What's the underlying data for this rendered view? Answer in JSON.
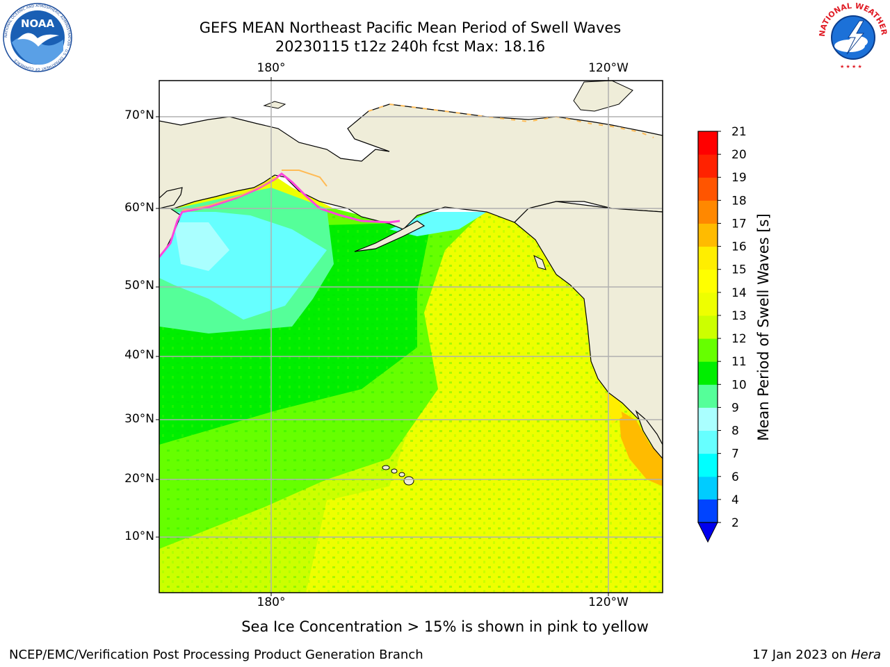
{
  "title": {
    "line1": "GEFS MEAN Northeast Pacific Mean Period of Swell Waves",
    "line2": "20230115 t12z 240h fcst   Max: 18.16"
  },
  "logos": {
    "left": "NOAA",
    "left_ring": "NATIONAL OCEANIC AND ATMOSPHERIC ADMINISTRATION · U.S. DEPARTMENT OF COMMERCE",
    "right_ring": "NATIONAL WEATHER SERVICE"
  },
  "map": {
    "lon_labels": [
      "180°",
      "120°W"
    ],
    "lat_labels": [
      "70°N",
      "60°N",
      "50°N",
      "40°N",
      "30°N",
      "20°N",
      "10°N"
    ]
  },
  "colorbar": {
    "label": "Mean Period of Swell Waves [s]",
    "ticks": [
      "2",
      "4",
      "6",
      "7",
      "8",
      "9",
      "10",
      "11",
      "12",
      "13",
      "14",
      "15",
      "16",
      "17",
      "18",
      "19",
      "20",
      "21"
    ],
    "colors": [
      "#0044ff",
      "#0077ff",
      "#00ccff",
      "#00ffff",
      "#66ffff",
      "#aaffff",
      "#55ff99",
      "#00ee00",
      "#66ff00",
      "#ccff00",
      "#eeff00",
      "#ffff00",
      "#ffee00",
      "#ffbb00",
      "#ff8800",
      "#ff5500",
      "#ff2200",
      "#ff0000"
    ],
    "under_color": "#0000ee"
  },
  "note": "Sea Ice Concentration > 15% is shown in pink to yellow",
  "footer": {
    "left": "NCEP/EMC/Verification Post Processing Product Generation Branch",
    "right_date": "17 Jan 2023 on ",
    "right_host": "Hera"
  }
}
